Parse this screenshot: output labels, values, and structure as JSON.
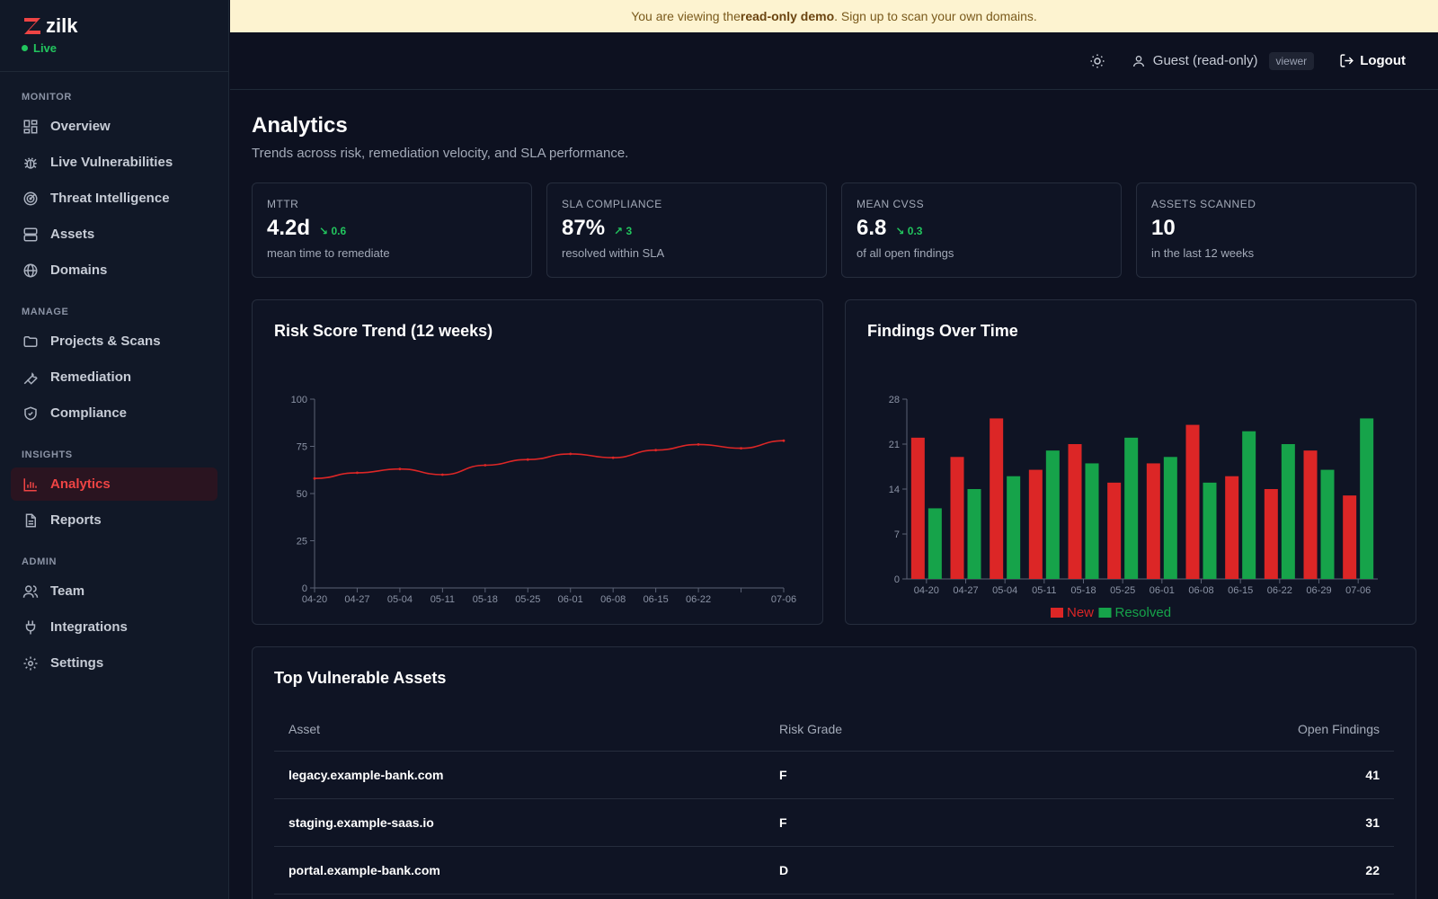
{
  "brand": {
    "name": "zilk",
    "status": "Live"
  },
  "banner": {
    "prefix": "You are viewing the ",
    "emphasis": "read-only demo",
    "suffix": ". Sign up to scan your own domains."
  },
  "header": {
    "user": "Guest (read-only)",
    "role": "viewer",
    "logout": "Logout"
  },
  "nav": {
    "monitor": {
      "heading": "MONITOR",
      "items": [
        "Overview",
        "Live Vulnerabilities",
        "Threat Intelligence",
        "Assets",
        "Domains"
      ]
    },
    "manage": {
      "heading": "MANAGE",
      "items": [
        "Projects & Scans",
        "Remediation",
        "Compliance"
      ]
    },
    "insights": {
      "heading": "INSIGHTS",
      "items": [
        "Analytics",
        "Reports"
      ]
    },
    "admin": {
      "heading": "ADMIN",
      "items": [
        "Team",
        "Integrations",
        "Settings"
      ]
    }
  },
  "page": {
    "title": "Analytics",
    "subtitle": "Trends across risk, remediation velocity, and SLA performance."
  },
  "kpis": [
    {
      "label": "MTTR",
      "value": "4.2d",
      "delta": "0.6",
      "direction": "down",
      "desc": "mean time to remediate"
    },
    {
      "label": "SLA COMPLIANCE",
      "value": "87%",
      "delta": "3",
      "direction": "up",
      "desc": "resolved within SLA"
    },
    {
      "label": "MEAN CVSS",
      "value": "6.8",
      "delta": "0.3",
      "direction": "down",
      "desc": "of all open findings"
    },
    {
      "label": "ASSETS SCANNED",
      "value": "10",
      "desc": "in the last 12 weeks"
    }
  ],
  "chart_data": [
    {
      "type": "line",
      "title": "Risk Score Trend (12 weeks)",
      "x": [
        "04-20",
        "04-27",
        "05-04",
        "05-11",
        "05-18",
        "05-25",
        "06-01",
        "06-08",
        "06-15",
        "06-22",
        "06-29",
        "07-06"
      ],
      "x_tick_labels": [
        "04-20",
        "04-27",
        "05-04",
        "05-11",
        "05-18",
        "05-25",
        "06-01",
        "06-08",
        "06-15",
        "06-22",
        "07-06"
      ],
      "values": [
        58,
        61,
        63,
        60,
        65,
        68,
        71,
        69,
        73,
        76,
        74,
        78
      ],
      "ylim": [
        0,
        100
      ],
      "yticks": [
        0,
        25,
        50,
        75,
        100
      ],
      "color": "#dc2626"
    },
    {
      "type": "bar",
      "title": "Findings Over Time",
      "categories": [
        "04-20",
        "04-27",
        "05-04",
        "05-11",
        "05-18",
        "05-25",
        "06-01",
        "06-08",
        "06-15",
        "06-22",
        "06-29",
        "07-06"
      ],
      "series": [
        {
          "name": "New",
          "color": "#dc2626",
          "values": [
            22,
            19,
            25,
            17,
            21,
            15,
            18,
            24,
            16,
            14,
            20,
            13
          ]
        },
        {
          "name": "Resolved",
          "color": "#16a34a",
          "values": [
            11,
            14,
            16,
            20,
            18,
            22,
            19,
            15,
            23,
            21,
            17,
            25
          ]
        }
      ],
      "ylim": [
        0,
        28
      ],
      "yticks": [
        0,
        7,
        14,
        21,
        28
      ],
      "legend": "bottom"
    }
  ],
  "table": {
    "title": "Top Vulnerable Assets",
    "columns": [
      "Asset",
      "Risk Grade",
      "Open Findings"
    ],
    "rows": [
      {
        "asset": "legacy.example-bank.com",
        "grade": "F",
        "findings": "41"
      },
      {
        "asset": "staging.example-saas.io",
        "grade": "F",
        "findings": "31"
      },
      {
        "asset": "portal.example-bank.com",
        "grade": "D",
        "findings": "22"
      }
    ]
  }
}
